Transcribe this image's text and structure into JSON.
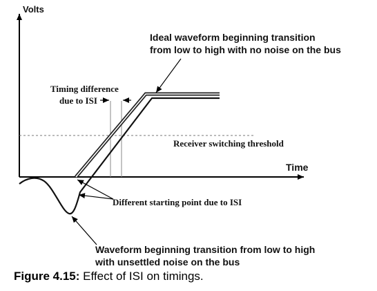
{
  "axes": {
    "y_label": "Volts",
    "x_label": "Time"
  },
  "annotations": {
    "ideal_line1": "Ideal waveform beginning transition",
    "ideal_line2": "from low to high with no noise on the bus",
    "timing_line1": "Timing difference",
    "timing_line2": "due to ISI",
    "threshold": "Receiver switching threshold",
    "starting_point": "Different starting point due to ISI",
    "noisy_line1": "Waveform beginning transition from low to high",
    "noisy_line2": "with unsettled noise on the bus"
  },
  "caption": {
    "label": "Figure 4.15:",
    "text": "Effect of ISI on timings."
  }
}
